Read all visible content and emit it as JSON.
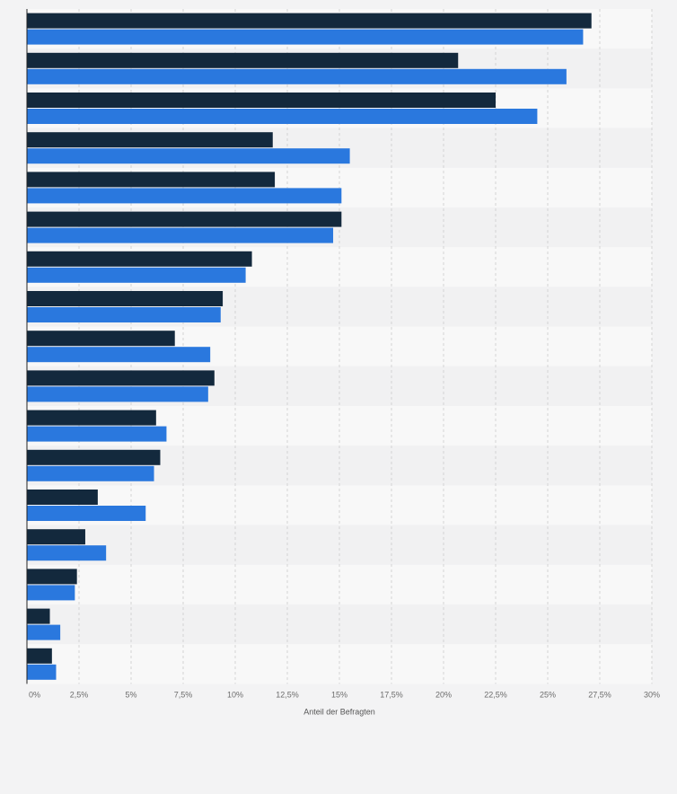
{
  "colors": {
    "page_background": "#f3f3f4",
    "plot_stripe_light": "#f8f8f8",
    "plot_stripe_dark": "#f1f1f2",
    "gridline": "#d4d4d4",
    "axis_line": "#222222"
  },
  "chart_data": {
    "type": "bar",
    "orientation": "horizontal",
    "categories": [
      "",
      "",
      "",
      "",
      "",
      "",
      "",
      "",
      "",
      "",
      "",
      "",
      "",
      "",
      "",
      "",
      ""
    ],
    "series": [
      {
        "color": "#13293d",
        "values": [
          27.1,
          20.7,
          22.5,
          11.8,
          11.9,
          15.1,
          10.8,
          9.4,
          7.1,
          9.0,
          6.2,
          6.4,
          3.4,
          2.8,
          2.4,
          1.1,
          1.2
        ]
      },
      {
        "color": "#2a78de",
        "values": [
          26.7,
          25.9,
          24.5,
          15.5,
          15.1,
          14.7,
          10.5,
          9.3,
          8.8,
          8.7,
          6.7,
          6.1,
          5.7,
          3.8,
          2.3,
          1.6,
          1.4
        ]
      }
    ],
    "xlabel": "Anteil der Befragten",
    "xlim": [
      0,
      30
    ],
    "xticks": [
      "0%",
      "2,5%",
      "5%",
      "7,5%",
      "10%",
      "12,5%",
      "15%",
      "17,5%",
      "20%",
      "22,5%",
      "25%",
      "27,5%",
      "30%"
    ],
    "grid": true,
    "legend": "none"
  }
}
